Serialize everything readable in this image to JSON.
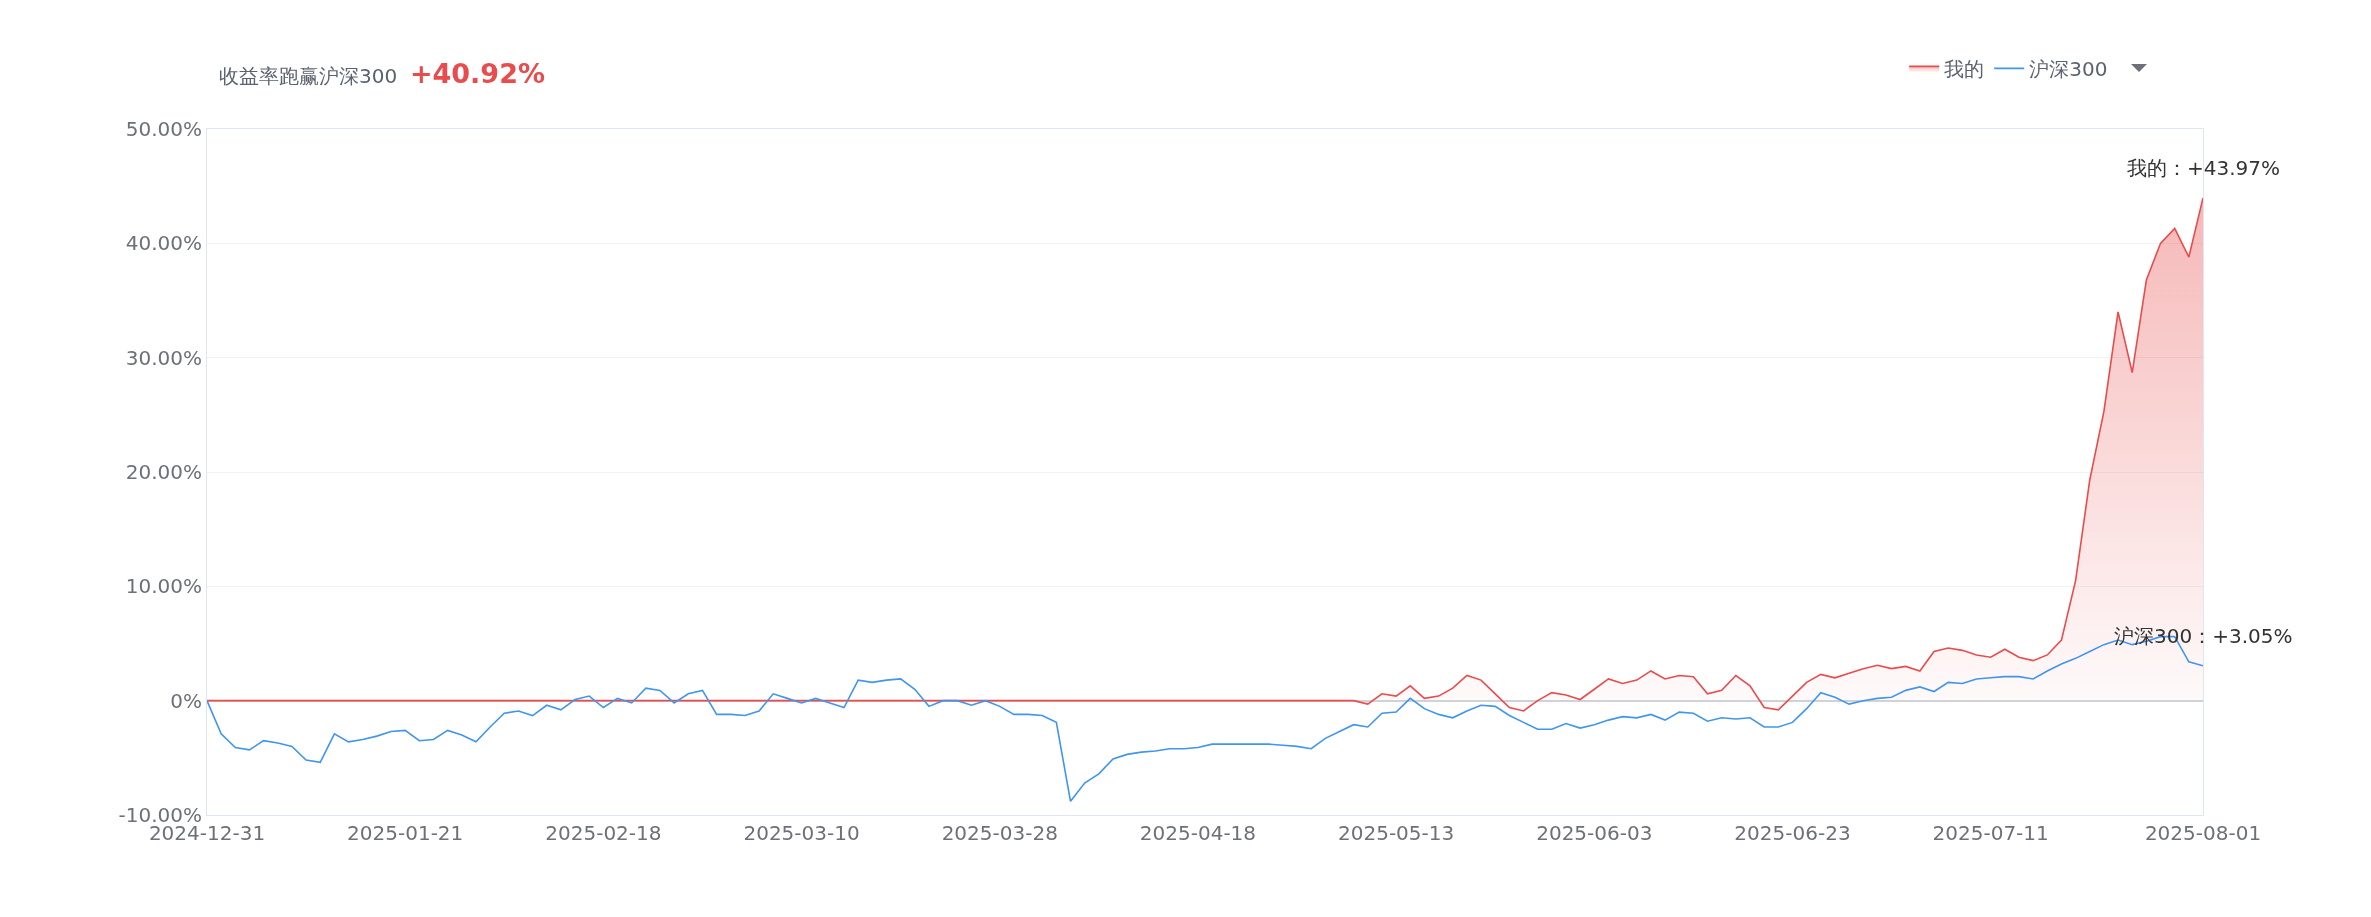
{
  "chart_data": {
    "type": "line",
    "title": "收益率跑赢沪深300",
    "subtitle": "+40.92%",
    "categories": [
      "2024-12-31",
      null,
      null,
      null,
      null,
      null,
      null,
      null,
      null,
      null,
      null,
      null,
      null,
      null,
      "2025-01-21",
      null,
      null,
      null,
      null,
      null,
      null,
      null,
      null,
      null,
      null,
      null,
      null,
      null,
      "2025-02-18",
      null,
      null,
      null,
      null,
      null,
      null,
      null,
      null,
      null,
      null,
      null,
      null,
      null,
      "2025-03-10",
      null,
      null,
      null,
      null,
      null,
      null,
      null,
      null,
      null,
      null,
      null,
      null,
      null,
      "2025-03-28",
      null,
      null,
      null,
      null,
      null,
      null,
      null,
      null,
      null,
      null,
      null,
      null,
      null,
      "2025-04-18",
      null,
      null,
      null,
      null,
      null,
      null,
      null,
      null,
      null,
      null,
      null,
      null,
      null,
      "2025-05-13",
      null,
      null,
      null,
      null,
      null,
      null,
      null,
      null,
      null,
      null,
      null,
      null,
      null,
      "2025-06-03",
      null,
      null,
      null,
      null,
      null,
      null,
      null,
      null,
      null,
      null,
      null,
      null,
      null,
      "2025-06-23",
      null,
      null,
      null,
      null,
      null,
      null,
      null,
      null,
      null,
      null,
      null,
      null,
      null,
      "2025-07-11",
      null,
      null,
      null,
      null,
      null,
      null,
      null,
      null,
      null,
      null,
      null,
      null,
      null,
      null,
      "2025-08-01"
    ],
    "series": [
      {
        "name": "我的",
        "type": "area",
        "color": "#e84c4c",
        "values": [
          0,
          0,
          0,
          0,
          0,
          0,
          0,
          0,
          0,
          0,
          0,
          0,
          0,
          0,
          0,
          0,
          0,
          0,
          0,
          0,
          0,
          0,
          0,
          0,
          0,
          0,
          0,
          0,
          0,
          0,
          0,
          0,
          0,
          0,
          0,
          0,
          0,
          0,
          0,
          0,
          0,
          0,
          0,
          0,
          0,
          0,
          0,
          0,
          0,
          0,
          0,
          0,
          0,
          0,
          0,
          0,
          0,
          0,
          0,
          0,
          0,
          0,
          0,
          0,
          0,
          0,
          0,
          0,
          0,
          0,
          0,
          0,
          0,
          0,
          0,
          0,
          0,
          0,
          0,
          0,
          0,
          0,
          -0.3,
          0.6,
          0.4,
          1.3,
          0.2,
          0.4,
          1.1,
          2.2,
          1.8,
          0.6,
          -0.6,
          -0.9,
          0,
          0.7,
          0.5,
          0.1,
          1.0,
          1.9,
          1.5,
          1.8,
          2.6,
          1.9,
          2.2,
          2.1,
          0.6,
          0.9,
          2.2,
          1.3,
          -0.6,
          -0.8,
          0.4,
          1.6,
          2.3,
          2.0,
          2.4,
          2.8,
          3.1,
          2.8,
          3.0,
          2.6,
          4.3,
          4.6,
          4.4,
          4.0,
          3.8,
          4.5,
          3.8,
          3.5,
          4.0,
          5.3,
          10.5,
          19.3,
          25.3,
          34.0,
          28.7,
          36.8,
          40.0,
          41.3,
          38.8,
          43.97
        ]
      },
      {
        "name": "沪深300",
        "color": "#4096ec",
        "values": [
          0,
          -2.9,
          -4.1,
          -4.3,
          -3.5,
          -3.7,
          -4.0,
          -5.2,
          -5.4,
          -2.9,
          -3.6,
          -3.4,
          -3.1,
          -2.7,
          -2.6,
          -3.5,
          -3.4,
          -2.6,
          -3.0,
          -3.6,
          -2.3,
          -1.1,
          -0.9,
          -1.3,
          -0.4,
          -0.8,
          0.1,
          0.4,
          -0.6,
          0.2,
          -0.2,
          1.1,
          0.9,
          -0.2,
          0.6,
          0.9,
          -1.2,
          -1.2,
          -1.3,
          -0.9,
          0.6,
          0.2,
          -0.2,
          0.2,
          -0.2,
          -0.6,
          1.8,
          1.6,
          1.8,
          1.9,
          1.0,
          -0.5,
          0,
          0,
          -0.4,
          0,
          -0.5,
          -1.2,
          -1.2,
          -1.3,
          -1.9,
          -8.8,
          -7.2,
          -6.4,
          -5.1,
          -4.7,
          -4.5,
          -4.4,
          -4.2,
          -4.2,
          -4.1,
          -3.8,
          -3.8,
          -3.8,
          -3.8,
          -3.8,
          -3.9,
          -4.0,
          -4.2,
          -3.3,
          -2.7,
          -2.1,
          -2.3,
          -1.1,
          -1.0,
          0.2,
          -0.7,
          -1.2,
          -1.5,
          -0.9,
          -0.4,
          -0.5,
          -1.3,
          -1.9,
          -2.5,
          -2.5,
          -2.0,
          -2.4,
          -2.1,
          -1.7,
          -1.4,
          -1.5,
          -1.2,
          -1.7,
          -1.0,
          -1.1,
          -1.8,
          -1.5,
          -1.6,
          -1.5,
          -2.3,
          -2.3,
          -1.9,
          -0.7,
          0.7,
          0.3,
          -0.3,
          0,
          0.2,
          0.3,
          0.9,
          1.2,
          0.8,
          1.6,
          1.5,
          1.9,
          2.0,
          2.1,
          2.1,
          1.9,
          2.6,
          3.2,
          3.7,
          4.3,
          4.9,
          5.3,
          4.9,
          5.2,
          5.6,
          5.6,
          3.4,
          3.05
        ]
      }
    ],
    "ylim": [
      -10,
      50
    ],
    "yticks": [
      {
        "value": -10,
        "label": "-10.00%"
      },
      {
        "value": 0,
        "label": "0%"
      },
      {
        "value": 10,
        "label": "10.00%"
      },
      {
        "value": 20,
        "label": "20.00%"
      },
      {
        "value": 30,
        "label": "30.00%"
      },
      {
        "value": 40,
        "label": "40.00%"
      },
      {
        "value": 50,
        "label": "50.00%"
      }
    ],
    "annotations": [
      {
        "text": "我的：+43.97%",
        "x": "2025-08-01",
        "y": 43.97
      },
      {
        "text": "沪深300：+3.05%",
        "x": "2025-08-01",
        "y": 3.05
      }
    ],
    "grid": "y",
    "legend": "top right",
    "marker": "none",
    "line_style": "solid"
  }
}
